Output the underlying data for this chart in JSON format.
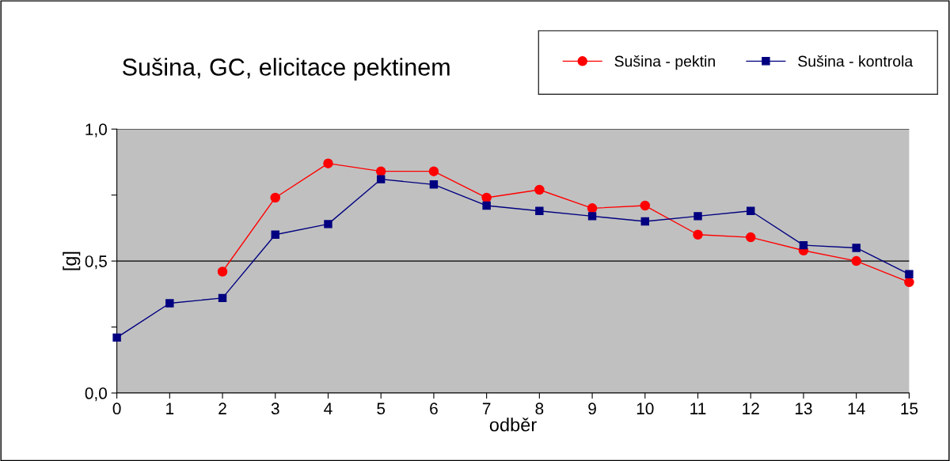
{
  "chart_data": {
    "type": "line",
    "title": "Sušina, GC, elicitace pektinem",
    "xlabel": "odběr",
    "ylabel": "[g]",
    "x": [
      0,
      1,
      2,
      3,
      4,
      5,
      6,
      7,
      8,
      9,
      10,
      11,
      12,
      13,
      14,
      15
    ],
    "series": [
      {
        "name": "Sušina - pektin",
        "color": "#ff0000",
        "marker": "circle",
        "values": [
          null,
          null,
          0.46,
          0.74,
          0.87,
          0.84,
          0.84,
          0.74,
          0.77,
          0.7,
          0.71,
          0.6,
          0.59,
          0.54,
          0.5,
          0.42
        ]
      },
      {
        "name": "Sušina - kontrola",
        "color": "#000080",
        "marker": "square",
        "values": [
          0.21,
          0.34,
          0.36,
          0.6,
          0.64,
          0.81,
          0.79,
          0.71,
          0.69,
          0.67,
          0.65,
          0.67,
          0.69,
          0.56,
          0.55,
          0.45
        ]
      }
    ],
    "xlim": [
      0,
      15
    ],
    "xticks": [
      0,
      1,
      2,
      3,
      4,
      5,
      6,
      7,
      8,
      9,
      10,
      11,
      12,
      13,
      14,
      15
    ],
    "ylim": [
      0,
      1
    ],
    "yticks": [
      {
        "value": 0,
        "label": "0,0"
      },
      {
        "value": 0.25,
        "label": null
      },
      {
        "value": 0.5,
        "label": "0,5"
      },
      {
        "value": 0.75,
        "label": null
      },
      {
        "value": 1,
        "label": "1,0"
      }
    ],
    "grid": "y",
    "legend": "top right",
    "line_style": "solid"
  }
}
